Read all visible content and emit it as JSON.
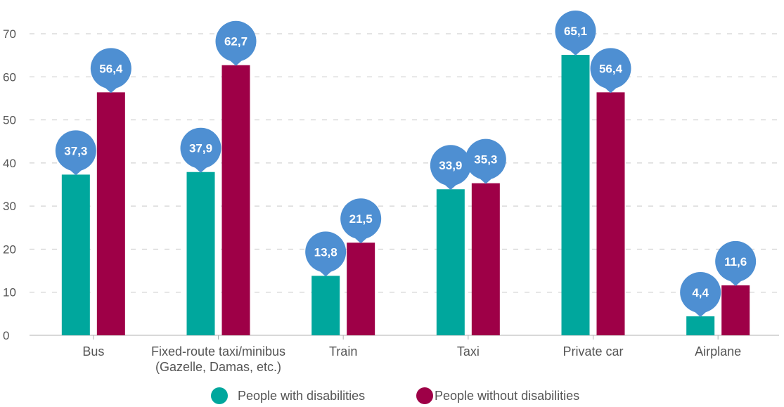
{
  "chart_data": {
    "type": "bar",
    "title": "",
    "xlabel": "",
    "ylabel": "",
    "ylim": [
      0,
      70
    ],
    "yticks": [
      "0",
      "10",
      "20",
      "30",
      "40",
      "50",
      "60",
      "70"
    ],
    "grid": true,
    "legend_placement": "bottom",
    "categories": [
      [
        "Bus"
      ],
      [
        "Fixed-route taxi/minibus",
        "(Gazelle, Damas, etc.)"
      ],
      [
        "Train"
      ],
      [
        "Taxi"
      ],
      [
        "Private car"
      ],
      [
        "Airplane"
      ]
    ],
    "series": [
      {
        "name": "People with disabilities",
        "color": "#00a79d",
        "values": [
          37.3,
          37.9,
          13.8,
          33.9,
          65.1,
          4.4
        ],
        "labels": [
          "37,3",
          "37,9",
          "13,8",
          "33,9",
          "65,1",
          "4,4"
        ]
      },
      {
        "name": "People without disabilities",
        "color": "#9e0047",
        "values": [
          56.4,
          62.7,
          21.5,
          35.3,
          56.4,
          11.6
        ],
        "labels": [
          "56,4",
          "62,7",
          "21,5",
          "35,3",
          "56,4",
          "11,6"
        ]
      }
    ],
    "label_bubble_color": "#4e8fd2"
  }
}
